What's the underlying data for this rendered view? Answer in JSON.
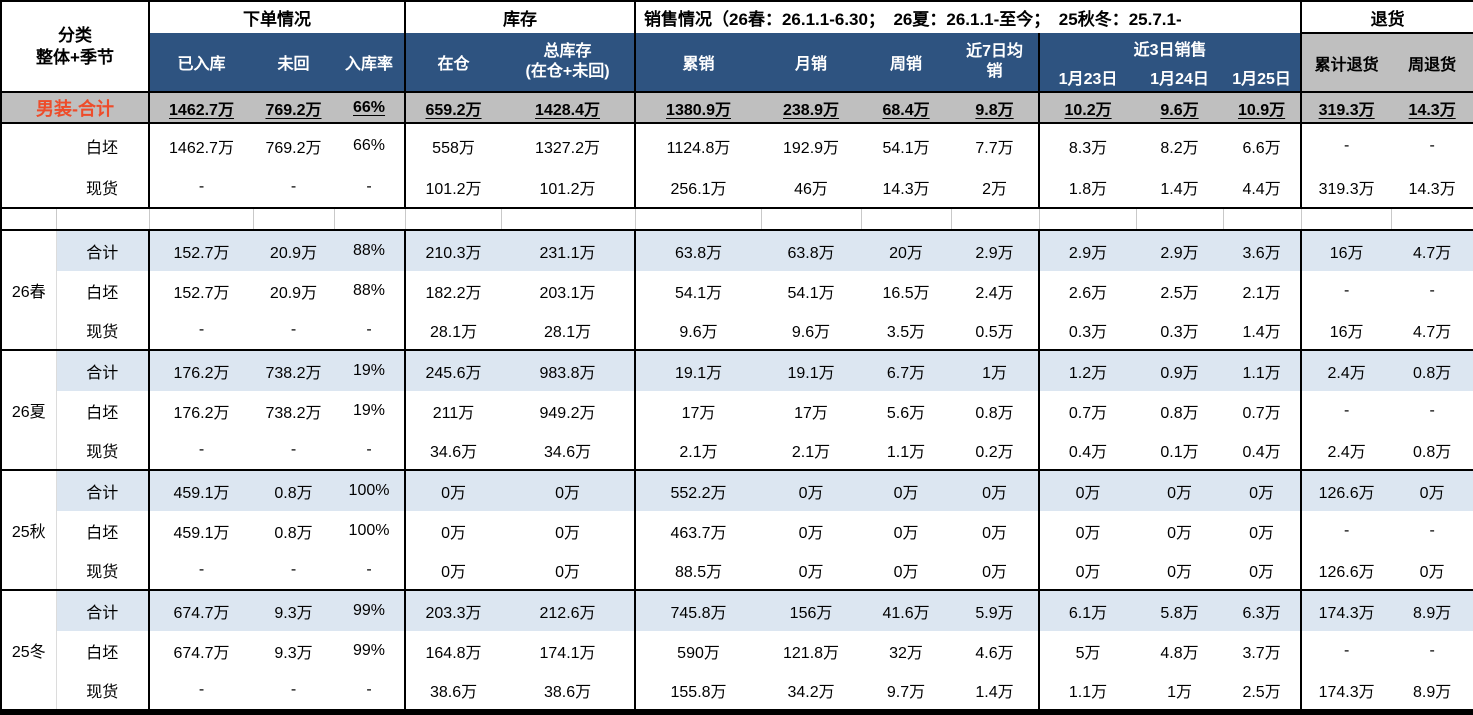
{
  "header": {
    "category_label": "分类\n整体+季节",
    "groups": {
      "order": "下单情况",
      "inventory": "库存",
      "sales": "销售情况（26春：26.1.1-6.30；　26夏：26.1.1-至今；　25秋冬：25.7.1-",
      "returns": "退货"
    },
    "recent3_label": "近3日销售",
    "columns": [
      "已入库",
      "未回",
      "入库率",
      "在仓",
      "总库存\n(在仓+未回)",
      "累销",
      "月销",
      "周销",
      "近7日均\n销",
      "1月23日",
      "1月24日",
      "1月25日",
      "累计退货",
      "周退货"
    ]
  },
  "total_block": {
    "total": {
      "label": "男装-合计",
      "values": [
        "1462.7万",
        "769.2万",
        "66%",
        "659.2万",
        "1428.4万",
        "1380.9万",
        "238.9万",
        "68.4万",
        "9.8万",
        "10.2万",
        "9.6万",
        "10.9万",
        "319.3万",
        "14.3万"
      ]
    },
    "rows": [
      {
        "label": "白坯",
        "values": [
          "1462.7万",
          "769.2万",
          "66%",
          "558万",
          "1327.2万",
          "1124.8万",
          "192.9万",
          "54.1万",
          "7.7万",
          "8.3万",
          "8.2万",
          "6.6万",
          "-",
          "-"
        ]
      },
      {
        "label": "现货",
        "values": [
          "-",
          "-",
          "-",
          "101.2万",
          "101.2万",
          "256.1万",
          "46万",
          "14.3万",
          "2万",
          "1.8万",
          "1.4万",
          "4.4万",
          "319.3万",
          "14.3万"
        ]
      }
    ]
  },
  "seasons": [
    {
      "name": "26春",
      "rows": [
        {
          "label": "合计",
          "values": [
            "152.7万",
            "20.9万",
            "88%",
            "210.3万",
            "231.1万",
            "63.8万",
            "63.8万",
            "20万",
            "2.9万",
            "2.9万",
            "2.9万",
            "3.6万",
            "16万",
            "4.7万"
          ]
        },
        {
          "label": "白坯",
          "values": [
            "152.7万",
            "20.9万",
            "88%",
            "182.2万",
            "203.1万",
            "54.1万",
            "54.1万",
            "16.5万",
            "2.4万",
            "2.6万",
            "2.5万",
            "2.1万",
            "-",
            "-"
          ]
        },
        {
          "label": "现货",
          "values": [
            "-",
            "-",
            "-",
            "28.1万",
            "28.1万",
            "9.6万",
            "9.6万",
            "3.5万",
            "0.5万",
            "0.3万",
            "0.3万",
            "1.4万",
            "16万",
            "4.7万"
          ]
        }
      ]
    },
    {
      "name": "26夏",
      "rows": [
        {
          "label": "合计",
          "values": [
            "176.2万",
            "738.2万",
            "19%",
            "245.6万",
            "983.8万",
            "19.1万",
            "19.1万",
            "6.7万",
            "1万",
            "1.2万",
            "0.9万",
            "1.1万",
            "2.4万",
            "0.8万"
          ]
        },
        {
          "label": "白坯",
          "values": [
            "176.2万",
            "738.2万",
            "19%",
            "211万",
            "949.2万",
            "17万",
            "17万",
            "5.6万",
            "0.8万",
            "0.7万",
            "0.8万",
            "0.7万",
            "-",
            "-"
          ]
        },
        {
          "label": "现货",
          "values": [
            "-",
            "-",
            "-",
            "34.6万",
            "34.6万",
            "2.1万",
            "2.1万",
            "1.1万",
            "0.2万",
            "0.4万",
            "0.1万",
            "0.4万",
            "2.4万",
            "0.8万"
          ]
        }
      ]
    },
    {
      "name": "25秋",
      "rows": [
        {
          "label": "合计",
          "values": [
            "459.1万",
            "0.8万",
            "100%",
            "0万",
            "0万",
            "552.2万",
            "0万",
            "0万",
            "0万",
            "0万",
            "0万",
            "0万",
            "126.6万",
            "0万"
          ]
        },
        {
          "label": "白坯",
          "values": [
            "459.1万",
            "0.8万",
            "100%",
            "0万",
            "0万",
            "463.7万",
            "0万",
            "0万",
            "0万",
            "0万",
            "0万",
            "0万",
            "-",
            "-"
          ]
        },
        {
          "label": "现货",
          "values": [
            "-",
            "-",
            "-",
            "0万",
            "0万",
            "88.5万",
            "0万",
            "0万",
            "0万",
            "0万",
            "0万",
            "0万",
            "126.6万",
            "0万"
          ]
        }
      ]
    },
    {
      "name": "25冬",
      "rows": [
        {
          "label": "合计",
          "values": [
            "674.7万",
            "9.3万",
            "99%",
            "203.3万",
            "212.6万",
            "745.8万",
            "156万",
            "41.6万",
            "5.9万",
            "6.1万",
            "5.8万",
            "6.3万",
            "174.3万",
            "8.9万"
          ]
        },
        {
          "label": "白坯",
          "values": [
            "674.7万",
            "9.3万",
            "99%",
            "164.8万",
            "174.1万",
            "590万",
            "121.8万",
            "32万",
            "4.6万",
            "5万",
            "4.8万",
            "3.7万",
            "-",
            "-"
          ]
        },
        {
          "label": "现货",
          "values": [
            "-",
            "-",
            "-",
            "38.6万",
            "38.6万",
            "155.8万",
            "34.2万",
            "9.7万",
            "1.4万",
            "1.1万",
            "1万",
            "2.5万",
            "174.3万",
            "8.9万"
          ]
        }
      ]
    }
  ],
  "colors": {
    "header_blue": "#2E5380",
    "band_gray": "#BFBFBF",
    "subtotal_light_blue": "#DCE6F1",
    "total_label_red": "#EE4C2A",
    "border_black": "#000000"
  }
}
